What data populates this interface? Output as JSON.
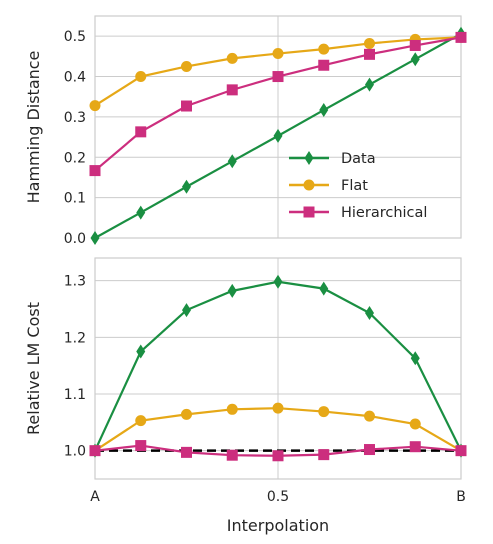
{
  "figure": {
    "xlabel": "Interpolation"
  },
  "chart_data": [
    {
      "type": "line",
      "ylabel": "Hamming Distance",
      "ylim": [
        0.0,
        0.55
      ],
      "xlim": [
        0,
        1
      ],
      "x": [
        0,
        0.125,
        0.25,
        0.375,
        0.5,
        0.625,
        0.75,
        0.875,
        1.0
      ],
      "yticks": [
        0.0,
        0.1,
        0.2,
        0.3,
        0.4,
        0.5
      ],
      "ytick_labels": [
        "0.0",
        "0.1",
        "0.2",
        "0.3",
        "0.4",
        "0.5"
      ],
      "grid": true,
      "legend_position": "lower-right",
      "series": [
        {
          "name": "Data",
          "color": "#1a8f42",
          "marker": "diamond",
          "values": [
            0.0,
            0.063,
            0.127,
            0.19,
            0.253,
            0.317,
            0.38,
            0.443,
            0.506
          ]
        },
        {
          "name": "Flat",
          "color": "#e6a817",
          "marker": "circle",
          "values": [
            0.328,
            0.4,
            0.425,
            0.445,
            0.457,
            0.468,
            0.482,
            0.492,
            0.497
          ]
        },
        {
          "name": "Hierarchical",
          "color": "#cc2e7e",
          "marker": "square",
          "values": [
            0.167,
            0.263,
            0.327,
            0.367,
            0.4,
            0.428,
            0.455,
            0.477,
            0.497
          ]
        }
      ]
    },
    {
      "type": "line",
      "ylabel": "Relative LM Cost",
      "ylim": [
        0.95,
        1.34
      ],
      "xlim": [
        0,
        1
      ],
      "x": [
        0,
        0.125,
        0.25,
        0.375,
        0.5,
        0.625,
        0.75,
        0.875,
        1.0
      ],
      "yticks": [
        1.0,
        1.1,
        1.2,
        1.3
      ],
      "ytick_labels": [
        "1.0",
        "1.1",
        "1.2",
        "1.3"
      ],
      "xticks": [
        0,
        0.5,
        1.0
      ],
      "xtick_labels": [
        "A",
        "0.5",
        "B"
      ],
      "reference_line": {
        "y": 1.0,
        "color": "#000000",
        "style": "dashed"
      },
      "grid": true,
      "series": [
        {
          "name": "Data",
          "color": "#1a8f42",
          "marker": "diamond",
          "values": [
            1.0,
            1.175,
            1.248,
            1.282,
            1.298,
            1.286,
            1.243,
            1.163,
            1.0
          ]
        },
        {
          "name": "Flat",
          "color": "#e6a817",
          "marker": "circle",
          "values": [
            1.0,
            1.053,
            1.064,
            1.073,
            1.075,
            1.069,
            1.061,
            1.047,
            1.0
          ]
        },
        {
          "name": "Hierarchical",
          "color": "#cc2e7e",
          "marker": "square",
          "values": [
            1.0,
            1.009,
            0.997,
            0.992,
            0.991,
            0.993,
            1.002,
            1.007,
            1.0
          ]
        }
      ]
    }
  ]
}
